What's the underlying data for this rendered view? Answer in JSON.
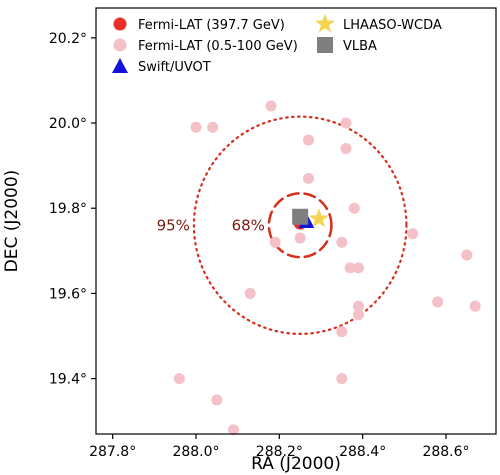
{
  "chart_data": {
    "type": "scatter",
    "xlabel": "RA (J2000)",
    "ylabel": "DEC (J2000)",
    "xlim": [
      287.76,
      288.72
    ],
    "ylim": [
      19.27,
      20.27
    ],
    "x_reversed": false,
    "grid": false,
    "legend_position": "top",
    "x_ticks": [
      287.8,
      288.0,
      288.2,
      288.4,
      288.6
    ],
    "x_tick_labels": [
      "287.8°",
      "288.0°",
      "288.2°",
      "288.4°",
      "288.6°"
    ],
    "y_ticks": [
      19.4,
      19.6,
      19.8,
      20.0,
      20.2
    ],
    "y_tick_labels": [
      "19.4°",
      "19.6°",
      "19.8°",
      "20.0°",
      "20.2°"
    ],
    "regions": [
      {
        "label": "68%",
        "center": [
          288.25,
          19.76
        ],
        "radius": 0.075,
        "style": "dashed",
        "color": "#d62f1f"
      },
      {
        "label": "95%",
        "center": [
          288.25,
          19.76
        ],
        "radius": 0.255,
        "style": "dotted",
        "color": "#d62f1f"
      }
    ],
    "series": [
      {
        "name": "Fermi-LAT (0.5-100 GeV)",
        "marker": "circle",
        "color": "#f4c1c8",
        "points": [
          [
            288.0,
            19.99
          ],
          [
            288.04,
            19.99
          ],
          [
            288.18,
            20.04
          ],
          [
            288.27,
            19.96
          ],
          [
            288.36,
            20.0
          ],
          [
            288.36,
            19.94
          ],
          [
            288.27,
            19.87
          ],
          [
            288.38,
            19.8
          ],
          [
            288.19,
            19.72
          ],
          [
            288.25,
            19.73
          ],
          [
            288.35,
            19.72
          ],
          [
            288.37,
            19.66
          ],
          [
            288.39,
            19.66
          ],
          [
            288.52,
            19.74
          ],
          [
            288.65,
            19.69
          ],
          [
            288.13,
            19.6
          ],
          [
            288.39,
            19.57
          ],
          [
            288.39,
            19.55
          ],
          [
            288.35,
            19.51
          ],
          [
            288.58,
            19.58
          ],
          [
            288.67,
            19.57
          ],
          [
            287.96,
            19.4
          ],
          [
            288.05,
            19.35
          ],
          [
            288.35,
            19.4
          ],
          [
            288.09,
            19.28
          ]
        ]
      },
      {
        "name": "Fermi-LAT (397.7 GeV)",
        "marker": "circle",
        "color": "#e8302a",
        "points": [
          [
            288.25,
            19.765
          ]
        ]
      },
      {
        "name": "Swift/UVOT",
        "marker": "triangle",
        "color": "#1414d8",
        "points": [
          [
            288.265,
            19.77
          ]
        ]
      },
      {
        "name": "LHAASO-WCDA",
        "marker": "star",
        "color": "#f4d451",
        "points": [
          [
            288.295,
            19.775
          ]
        ]
      },
      {
        "name": "VLBA",
        "marker": "square",
        "color": "#7f7f7f",
        "points": [
          [
            288.25,
            19.78
          ]
        ]
      }
    ],
    "legend": [
      {
        "name": "Fermi-LAT (397.7 GeV)",
        "marker": "circle",
        "color": "#e8302a"
      },
      {
        "name": "Fermi-LAT (0.5-100 GeV)",
        "marker": "circle",
        "color": "#f4c1c8"
      },
      {
        "name": "Swift/UVOT",
        "marker": "triangle",
        "color": "#1414d8"
      },
      {
        "name": "LHAASO-WCDA",
        "marker": "star",
        "color": "#f4d451"
      },
      {
        "name": "VLBA",
        "marker": "square",
        "color": "#7f7f7f"
      }
    ]
  }
}
